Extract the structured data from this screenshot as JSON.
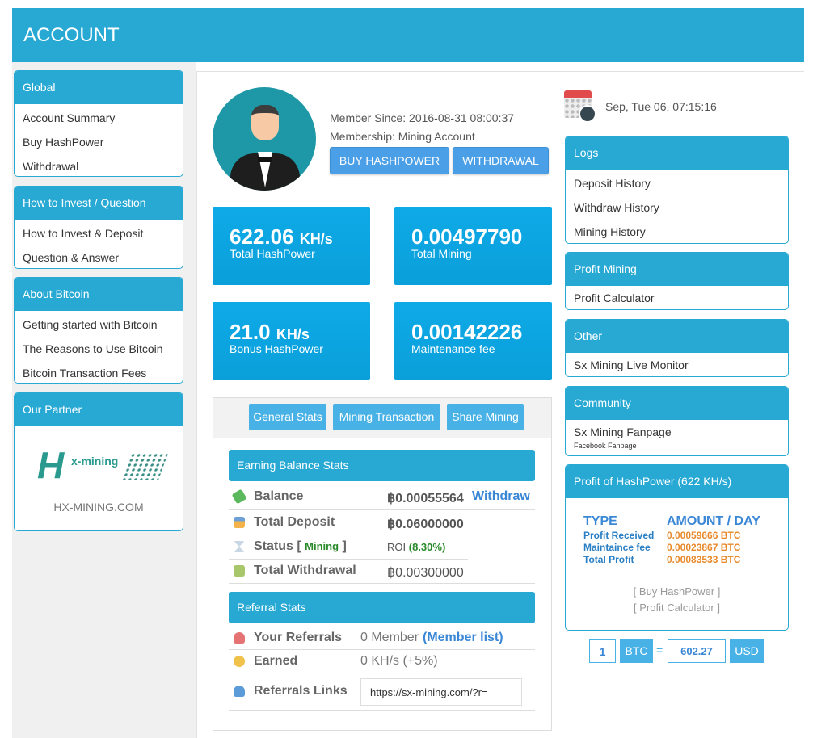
{
  "header": {
    "title": "ACCOUNT"
  },
  "sidebar": [
    {
      "title": "Global",
      "items": [
        "Account Summary",
        "Buy HashPower",
        "Withdrawal"
      ]
    },
    {
      "title": "How to Invest / Question",
      "items": [
        "How to Invest & Deposit",
        "Question & Answer"
      ]
    },
    {
      "title": "About Bitcoin",
      "items": [
        "Getting started with Bitcoin",
        "The Reasons to Use Bitcoin",
        "Bitcoin Transaction Fees"
      ]
    },
    {
      "title": "Our Partner",
      "partner_logo": "H x-mining",
      "partner_name": "HX-MINING.COM"
    }
  ],
  "profile": {
    "member_since": "Member Since: 2016-08-31 08:00:37",
    "membership": "Membership: Mining Account",
    "buy_button": "BUY HASHPOWER",
    "withdraw_button": "WITHDRAWAL"
  },
  "tiles": [
    {
      "value": "622.06",
      "unit": "KH/s",
      "label": "Total HashPower"
    },
    {
      "value": "0.00497790",
      "unit": "",
      "label": "Total Mining"
    },
    {
      "value": "21.0",
      "unit": "KH/s",
      "label": "Bonus HashPower"
    },
    {
      "value": "0.00142226",
      "unit": "",
      "label": "Maintenance fee"
    }
  ],
  "tabs": [
    "General Stats",
    "Mining Transaction",
    "Share Mining"
  ],
  "earning": {
    "title": "Earning Balance Stats",
    "balance_label": "Balance",
    "balance": "฿0.00055564",
    "withdraw_link": "Withdraw",
    "deposit_label": "Total Deposit",
    "deposit": "฿0.06000000",
    "status_label": "Status",
    "status_open": "[",
    "status_value": "Mining",
    "status_close": "]",
    "roi_label": "ROI",
    "roi": "(8.30%)",
    "withdrawal_label": "Total Withdrawal",
    "withdrawal": "฿0.00300000"
  },
  "referral": {
    "title": "Referral Stats",
    "referrals_label": "Your Referrals",
    "referrals": "0 Member",
    "member_list": "(Member list)",
    "earned_label": "Earned",
    "earned": "0 KH/s (+5%)",
    "links_label": "Referrals Links",
    "link": "https://sx-mining.com/?r="
  },
  "datetime": "Sep, Tue 06, 07:15:16",
  "right": [
    {
      "title": "Logs",
      "items": [
        "Deposit History",
        "Withdraw History",
        "Mining History"
      ]
    },
    {
      "title": "Profit Mining",
      "items": [
        "Profit Calculator"
      ]
    },
    {
      "title": "Other",
      "items": [
        "Sx Mining Live Monitor"
      ]
    },
    {
      "title": "Community",
      "items": [
        "Sx Mining Fanpage"
      ],
      "sub": "Facebook Fanpage"
    }
  ],
  "profit": {
    "title": "Profit of HashPower (622 KH/s)",
    "col_type": "TYPE",
    "col_amount": "AMOUNT / DAY",
    "rows": [
      {
        "type": "Profit Received",
        "amount": "0.00059666 BTC"
      },
      {
        "type": "Maintaince fee",
        "amount": "0.00023867 BTC"
      },
      {
        "type": "Total Profit",
        "amount": "0.00083533 BTC"
      }
    ],
    "buy_link": "[ Buy HashPower ]",
    "calc_link": "[ Profit Calculator ]"
  },
  "converter": {
    "amount": "1",
    "from": "BTC",
    "eq": "=",
    "result": "602.27",
    "to": "USD"
  },
  "colors": {
    "primary": "#27a9d4",
    "tile": "#0aa5e3",
    "orange": "#e8892a",
    "green": "#2a8a2a"
  }
}
